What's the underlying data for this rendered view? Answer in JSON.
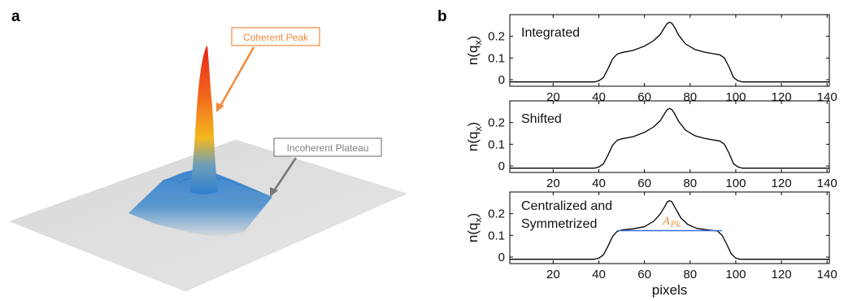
{
  "panel_a": {
    "label": "a",
    "annotations": {
      "peak": "Coherent Peak",
      "plateau": "Incoherent Plateau"
    },
    "colors": {
      "peak_box": "#f08a3c",
      "plateau_box": "#808080"
    }
  },
  "panel_b": {
    "label": "b"
  },
  "chart_data": [
    {
      "type": "line",
      "annotation": "Integrated",
      "ylabel_base": "n(q",
      "ylabel_sub": "x",
      "ylabel_end": ")",
      "xlabel": "",
      "xlim": [
        1,
        141
      ],
      "ylim": [
        -0.03,
        0.3
      ],
      "xticks": [
        20,
        40,
        60,
        80,
        100,
        120,
        140
      ],
      "yticks": [
        0,
        0.1,
        0.2
      ],
      "ytick_labels": [
        "0",
        "0.1",
        "0.2"
      ],
      "x": [
        1,
        38,
        40,
        42,
        44,
        46,
        48,
        50,
        55,
        60,
        64,
        67,
        69,
        70,
        71,
        72,
        73,
        75,
        78,
        82,
        86,
        90,
        93,
        95,
        97,
        99,
        101,
        103,
        141
      ],
      "y": [
        -0.01,
        -0.01,
        -0.005,
        0.01,
        0.05,
        0.095,
        0.118,
        0.125,
        0.135,
        0.155,
        0.18,
        0.21,
        0.245,
        0.26,
        0.265,
        0.26,
        0.245,
        0.205,
        0.165,
        0.14,
        0.128,
        0.12,
        0.115,
        0.1,
        0.06,
        0.01,
        -0.005,
        -0.01,
        -0.01
      ],
      "color": "#000000"
    },
    {
      "type": "line",
      "annotation": "Shifted",
      "ylabel_base": "n(q",
      "ylabel_sub": "x",
      "ylabel_end": ")",
      "xlabel": "",
      "xlim": [
        1,
        141
      ],
      "ylim": [
        -0.03,
        0.3
      ],
      "xticks": [
        20,
        40,
        60,
        80,
        100,
        120,
        140
      ],
      "yticks": [
        0,
        0.1,
        0.2
      ],
      "ytick_labels": [
        "0",
        "0.1",
        "0.2"
      ],
      "x": [
        1,
        38,
        40,
        42,
        44,
        46,
        48,
        50,
        55,
        60,
        64,
        67,
        69,
        70,
        71,
        72,
        73,
        75,
        78,
        82,
        86,
        90,
        93,
        95,
        97,
        99,
        101,
        103,
        141
      ],
      "y": [
        -0.01,
        -0.01,
        -0.005,
        0.01,
        0.05,
        0.095,
        0.118,
        0.125,
        0.135,
        0.155,
        0.18,
        0.21,
        0.245,
        0.26,
        0.265,
        0.26,
        0.245,
        0.205,
        0.165,
        0.14,
        0.128,
        0.12,
        0.115,
        0.1,
        0.06,
        0.01,
        -0.005,
        -0.01,
        -0.01
      ],
      "color": "#000000"
    },
    {
      "type": "line",
      "annotation": "Centralized and\nSymmetrized",
      "annotation_lines": [
        "Centralized and",
        "Symmetrized"
      ],
      "peak_label": "A",
      "peak_label_sub": "Pk",
      "peak_label_color": "#e8923a",
      "ylabel_base": "n(q",
      "ylabel_sub": "x",
      "ylabel_end": ")",
      "xlabel": "pixels",
      "xlim": [
        1,
        141
      ],
      "ylim": [
        -0.03,
        0.3
      ],
      "xticks": [
        20,
        40,
        60,
        80,
        100,
        120,
        140
      ],
      "yticks": [
        0,
        0.1,
        0.2
      ],
      "ytick_labels": [
        "0",
        "0.1",
        "0.2"
      ],
      "x": [
        1,
        38,
        40,
        42,
        44,
        46,
        48,
        50,
        55,
        60,
        64,
        67,
        69,
        70,
        71,
        72,
        73,
        76,
        79,
        83,
        88,
        92,
        94,
        96,
        98,
        100,
        102,
        104,
        141
      ],
      "y": [
        -0.01,
        -0.01,
        -0.005,
        0.01,
        0.05,
        0.095,
        0.118,
        0.125,
        0.13,
        0.14,
        0.165,
        0.2,
        0.235,
        0.255,
        0.26,
        0.255,
        0.235,
        0.18,
        0.15,
        0.132,
        0.125,
        0.12,
        0.1,
        0.06,
        0.015,
        -0.005,
        -0.01,
        -0.01,
        -0.01
      ],
      "color": "#000000",
      "baseline": {
        "x": [
          48,
          94
        ],
        "y": 0.122,
        "color": "#3a6fd8"
      }
    }
  ]
}
